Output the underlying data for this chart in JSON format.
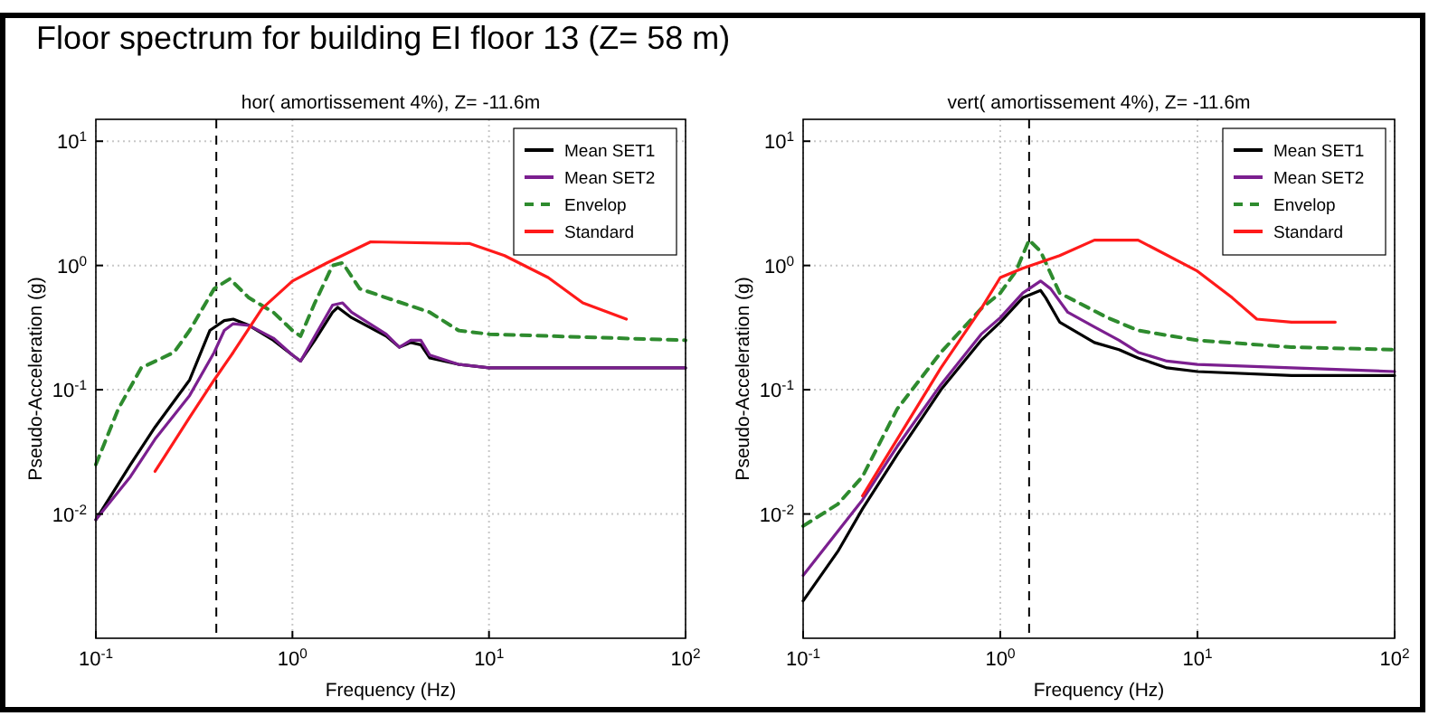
{
  "chart_data": [
    {
      "type": "line",
      "title": "Floor spectrum for building EI floor 13   (Z= 58 m)",
      "subtitle": "hor( amortissement 4%),  Z= -11.6m",
      "xlabel": "Frequency (Hz)",
      "ylabel": "Pseudo-Acceleration (g)",
      "log": "xy",
      "grid": true,
      "legend": "top right",
      "xlim": [
        0.1,
        100
      ],
      "ylim": [
        0.001,
        15
      ],
      "xticks": [
        {
          "value": 0.1,
          "label": "10$^{-1}$"
        },
        {
          "value": 1,
          "label": "10$^{0}$"
        },
        {
          "value": 10,
          "label": "10$^{1}$"
        },
        {
          "value": 100,
          "label": "10$^{2}$"
        }
      ],
      "yticks": [
        {
          "value": 0.01,
          "label": "10$^{-2}$"
        },
        {
          "value": 0.1,
          "label": "10$^{-1}$"
        },
        {
          "value": 1,
          "label": "10$^{0}$"
        },
        {
          "value": 10,
          "label": "10$^{1}$"
        }
      ],
      "ref_lines": [
        {
          "axis": "x",
          "value": 0.41,
          "color": "#000000",
          "line_style": "dashed"
        }
      ],
      "series": [
        {
          "name": "Mean SET1",
          "color": "#000000",
          "x": [
            0.1,
            0.15,
            0.2,
            0.3,
            0.38,
            0.45,
            0.5,
            0.6,
            0.8,
            1.0,
            1.1,
            1.3,
            1.6,
            1.7,
            2.0,
            3.0,
            3.5,
            4.0,
            4.5,
            5.0,
            7,
            10,
            30,
            100
          ],
          "values": [
            0.009,
            0.025,
            0.05,
            0.12,
            0.3,
            0.36,
            0.37,
            0.33,
            0.25,
            0.19,
            0.17,
            0.25,
            0.42,
            0.46,
            0.38,
            0.27,
            0.22,
            0.24,
            0.23,
            0.18,
            0.16,
            0.15,
            0.15,
            0.15
          ]
        },
        {
          "name": "Mean SET2",
          "color": "#7b1f8f",
          "x": [
            0.1,
            0.15,
            0.2,
            0.3,
            0.4,
            0.45,
            0.5,
            0.6,
            0.8,
            1.0,
            1.1,
            1.3,
            1.6,
            1.8,
            2.0,
            3.0,
            3.5,
            4.0,
            4.5,
            5.0,
            7,
            10,
            100
          ],
          "values": [
            0.009,
            0.02,
            0.04,
            0.09,
            0.2,
            0.3,
            0.34,
            0.33,
            0.26,
            0.19,
            0.17,
            0.27,
            0.48,
            0.5,
            0.42,
            0.28,
            0.22,
            0.25,
            0.25,
            0.19,
            0.16,
            0.15,
            0.15
          ]
        },
        {
          "name": "Envelop",
          "color": "#2e8b2e",
          "line_style": "dashed",
          "x": [
            0.1,
            0.13,
            0.17,
            0.25,
            0.3,
            0.4,
            0.48,
            0.6,
            0.8,
            1.0,
            1.1,
            1.3,
            1.6,
            1.8,
            2.2,
            3,
            5,
            7,
            10,
            100
          ],
          "values": [
            0.025,
            0.07,
            0.15,
            0.2,
            0.3,
            0.65,
            0.78,
            0.55,
            0.42,
            0.3,
            0.27,
            0.5,
            1.0,
            1.05,
            0.65,
            0.55,
            0.42,
            0.3,
            0.28,
            0.25
          ]
        },
        {
          "name": "Standard",
          "color": "#ff1a1a",
          "x": [
            0.2,
            0.3,
            0.4,
            0.5,
            0.7,
            1.0,
            1.5,
            2.5,
            8,
            12,
            20,
            30,
            50
          ],
          "values": [
            0.022,
            0.06,
            0.12,
            0.2,
            0.45,
            0.75,
            1.05,
            1.55,
            1.5,
            1.2,
            0.8,
            0.5,
            0.37
          ]
        }
      ]
    },
    {
      "type": "line",
      "subtitle": "vert( amortissement 4%),  Z= -11.6m",
      "xlabel": "Frequency (Hz)",
      "ylabel": "Pseudo-Acceleration (g)",
      "log": "xy",
      "grid": true,
      "legend": "top right",
      "xlim": [
        0.1,
        100
      ],
      "ylim": [
        0.001,
        15
      ],
      "xticks": [
        {
          "value": 0.1,
          "label": "10$^{-1}$"
        },
        {
          "value": 1,
          "label": "10$^{0}$"
        },
        {
          "value": 10,
          "label": "10$^{1}$"
        },
        {
          "value": 100,
          "label": "10$^{2}$"
        }
      ],
      "yticks": [
        {
          "value": 0.01,
          "label": "10$^{-2}$"
        },
        {
          "value": 0.1,
          "label": "10$^{-1}$"
        },
        {
          "value": 1,
          "label": "10$^{0}$"
        },
        {
          "value": 10,
          "label": "10$^{1}$"
        }
      ],
      "ref_lines": [
        {
          "axis": "x",
          "value": 1.4,
          "color": "#000000",
          "line_style": "dashed"
        }
      ],
      "series": [
        {
          "name": "Mean SET1",
          "color": "#000000",
          "x": [
            0.1,
            0.15,
            0.2,
            0.3,
            0.5,
            0.8,
            1.0,
            1.3,
            1.6,
            1.7,
            2.0,
            3,
            4,
            5,
            7,
            10,
            30,
            100
          ],
          "values": [
            0.002,
            0.005,
            0.011,
            0.03,
            0.1,
            0.25,
            0.35,
            0.55,
            0.63,
            0.55,
            0.35,
            0.24,
            0.21,
            0.18,
            0.15,
            0.14,
            0.13,
            0.13
          ]
        },
        {
          "name": "Mean SET2",
          "color": "#7b1f8f",
          "x": [
            0.1,
            0.2,
            0.3,
            0.5,
            0.8,
            1.0,
            1.3,
            1.6,
            1.8,
            2.2,
            3,
            4,
            5,
            7,
            10,
            30,
            100
          ],
          "values": [
            0.0032,
            0.013,
            0.035,
            0.11,
            0.28,
            0.38,
            0.6,
            0.75,
            0.65,
            0.42,
            0.32,
            0.25,
            0.2,
            0.17,
            0.16,
            0.15,
            0.14
          ]
        },
        {
          "name": "Envelop",
          "color": "#2e8b2e",
          "line_style": "dashed",
          "x": [
            0.1,
            0.15,
            0.2,
            0.3,
            0.5,
            0.8,
            1.0,
            1.2,
            1.4,
            1.6,
            2.0,
            2.5,
            3.5,
            5,
            10,
            30,
            100
          ],
          "values": [
            0.008,
            0.012,
            0.02,
            0.07,
            0.2,
            0.45,
            0.6,
            0.9,
            1.6,
            1.3,
            0.6,
            0.5,
            0.38,
            0.3,
            0.25,
            0.22,
            0.21
          ]
        },
        {
          "name": "Standard",
          "color": "#ff1a1a",
          "x": [
            0.2,
            0.3,
            0.5,
            0.8,
            1.0,
            1.3,
            2,
            3,
            5,
            10,
            15,
            20,
            30,
            50
          ],
          "values": [
            0.014,
            0.04,
            0.15,
            0.45,
            0.8,
            0.95,
            1.2,
            1.6,
            1.6,
            0.9,
            0.55,
            0.37,
            0.35,
            0.35
          ]
        }
      ]
    }
  ]
}
